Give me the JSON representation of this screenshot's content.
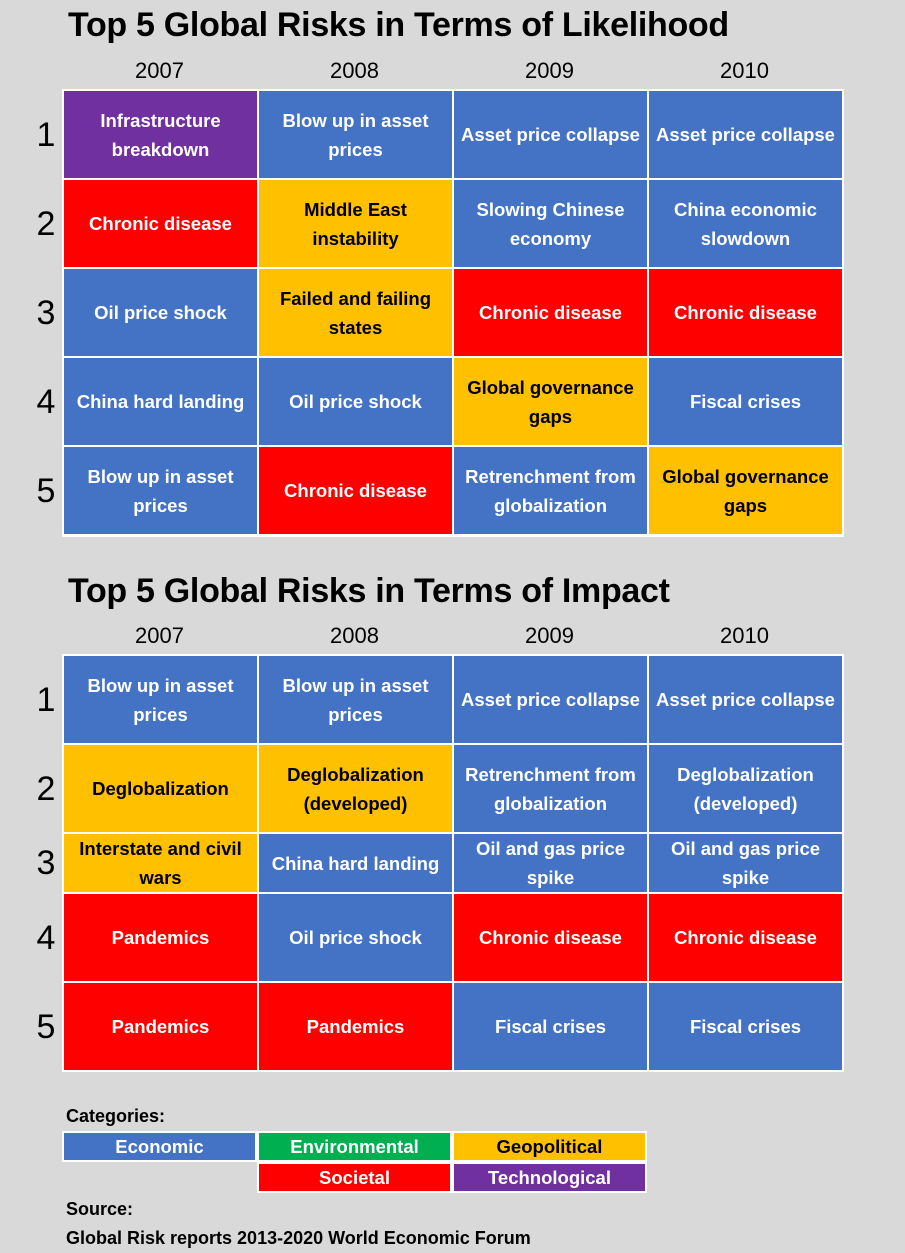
{
  "colors": {
    "Economic": "#4472c4",
    "Environmental": "#00b050",
    "Geopolitical": "#ffc000",
    "Societal": "#ff0000",
    "Technological": "#7030a0"
  },
  "text_colors": {
    "Economic": "#ffffff",
    "Environmental": "#ffffff",
    "Geopolitical": "#000000",
    "Societal": "#ffffff",
    "Technological": "#ffffff"
  },
  "chart_data": [
    {
      "type": "table",
      "title": "Top 5 Global Risks in Terms of Likelihood",
      "years": [
        "2007",
        "2008",
        "2009",
        "2010"
      ],
      "ranks": [
        "1",
        "2",
        "3",
        "4",
        "5"
      ],
      "rows": [
        [
          {
            "text": "Infrastructure breakdown",
            "category": "Technological"
          },
          {
            "text": "Blow up in asset prices",
            "category": "Economic"
          },
          {
            "text": "Asset price collapse",
            "category": "Economic"
          },
          {
            "text": "Asset price collapse",
            "category": "Economic"
          }
        ],
        [
          {
            "text": "Chronic disease",
            "category": "Societal"
          },
          {
            "text": "Middle East instability",
            "category": "Geopolitical"
          },
          {
            "text": "Slowing Chinese economy",
            "category": "Economic"
          },
          {
            "text": "China economic slowdown",
            "category": "Economic"
          }
        ],
        [
          {
            "text": "Oil price shock",
            "category": "Economic"
          },
          {
            "text": "Failed and failing states",
            "category": "Geopolitical"
          },
          {
            "text": "Chronic disease",
            "category": "Societal"
          },
          {
            "text": "Chronic disease",
            "category": "Societal"
          }
        ],
        [
          {
            "text": "China hard landing",
            "category": "Economic"
          },
          {
            "text": "Oil price shock",
            "category": "Economic"
          },
          {
            "text": "Global governance gaps",
            "category": "Geopolitical"
          },
          {
            "text": "Fiscal crises",
            "category": "Economic"
          }
        ],
        [
          {
            "text": "Blow up in asset prices",
            "category": "Economic"
          },
          {
            "text": "Chronic disease",
            "category": "Societal"
          },
          {
            "text": "Retrenchment from globalization",
            "category": "Economic"
          },
          {
            "text": "Global governance gaps",
            "category": "Geopolitical"
          }
        ]
      ]
    },
    {
      "type": "table",
      "title": "Top 5 Global Risks in Terms of Impact",
      "years": [
        "2007",
        "2008",
        "2009",
        "2010"
      ],
      "ranks": [
        "1",
        "2",
        "3",
        "4",
        "5"
      ],
      "rows": [
        [
          {
            "text": "Blow up in asset prices",
            "category": "Economic"
          },
          {
            "text": "Blow up in asset prices",
            "category": "Economic"
          },
          {
            "text": "Asset price collapse",
            "category": "Economic"
          },
          {
            "text": "Asset price collapse",
            "category": "Economic"
          }
        ],
        [
          {
            "text": "Deglobalization",
            "category": "Geopolitical"
          },
          {
            "text": "Deglobalization (developed)",
            "category": "Geopolitical"
          },
          {
            "text": "Retrenchment from globalization",
            "category": "Economic"
          },
          {
            "text": "Deglobalization (developed)",
            "category": "Economic"
          }
        ],
        [
          {
            "text": "Interstate and civil wars",
            "category": "Geopolitical"
          },
          {
            "text": "China hard landing",
            "category": "Economic"
          },
          {
            "text": "Oil and gas price spike",
            "category": "Economic"
          },
          {
            "text": "Oil and gas price spike",
            "category": "Economic"
          }
        ],
        [
          {
            "text": "Pandemics",
            "category": "Societal"
          },
          {
            "text": "Oil price shock",
            "category": "Economic"
          },
          {
            "text": "Chronic disease",
            "category": "Societal"
          },
          {
            "text": "Chronic disease",
            "category": "Societal"
          }
        ],
        [
          {
            "text": "Pandemics",
            "category": "Societal"
          },
          {
            "text": "Pandemics",
            "category": "Societal"
          },
          {
            "text": "Fiscal crises",
            "category": "Economic"
          },
          {
            "text": "Fiscal crises",
            "category": "Economic"
          }
        ]
      ]
    }
  ],
  "legend": {
    "title": "Categories:",
    "items": [
      "Economic",
      "Environmental",
      "Geopolitical",
      "Societal",
      "Technological"
    ]
  },
  "source": {
    "label": "Source:",
    "text": "Global Risk reports 2013-2020 World Economic Forum"
  }
}
